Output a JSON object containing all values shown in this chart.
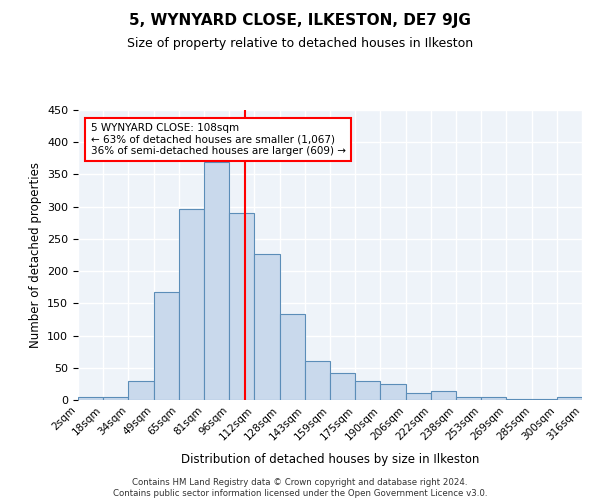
{
  "title": "5, WYNYARD CLOSE, ILKESTON, DE7 9JG",
  "subtitle": "Size of property relative to detached houses in Ilkeston",
  "xlabel": "Distribution of detached houses by size in Ilkeston",
  "ylabel": "Number of detached properties",
  "bin_labels": [
    "2sqm",
    "18sqm",
    "34sqm",
    "49sqm",
    "65sqm",
    "81sqm",
    "96sqm",
    "112sqm",
    "128sqm",
    "143sqm",
    "159sqm",
    "175sqm",
    "190sqm",
    "206sqm",
    "222sqm",
    "238sqm",
    "253sqm",
    "269sqm",
    "285sqm",
    "300sqm",
    "316sqm"
  ],
  "bar_values": [
    4,
    4,
    30,
    168,
    296,
    370,
    290,
    226,
    134,
    60,
    42,
    30,
    25,
    11,
    14,
    5,
    4,
    2,
    2,
    4
  ],
  "bar_color": "#c9d9ec",
  "bar_edge_color": "#5b8db8",
  "ylim": [
    0,
    450
  ],
  "yticks": [
    0,
    50,
    100,
    150,
    200,
    250,
    300,
    350,
    400,
    450
  ],
  "property_line_x": 6.63,
  "annotation_text": "5 WYNYARD CLOSE: 108sqm\n← 63% of detached houses are smaller (1,067)\n36% of semi-detached houses are larger (609) →",
  "annotation_box_color": "white",
  "annotation_box_edge_color": "red",
  "footer_text": "Contains HM Land Registry data © Crown copyright and database right 2024.\nContains public sector information licensed under the Open Government Licence v3.0.",
  "bg_color": "#eef3f9",
  "grid_color": "white"
}
